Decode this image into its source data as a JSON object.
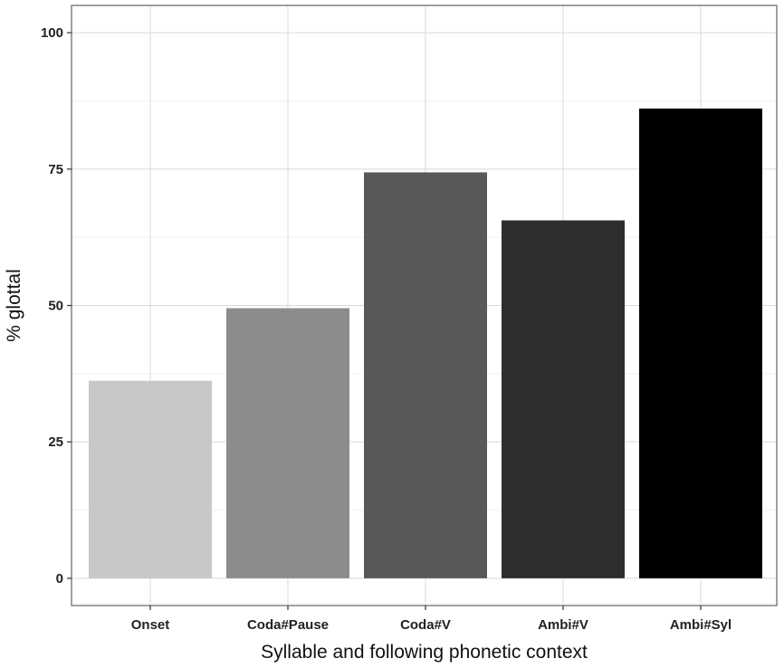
{
  "chart_data": {
    "type": "bar",
    "categories": [
      "Onset",
      "Coda#Pause",
      "Coda#V",
      "Ambi#V",
      "Ambi#Syl"
    ],
    "values": [
      36.2,
      49.5,
      74.4,
      65.6,
      86.1
    ],
    "colors": [
      "#c8c8c8",
      "#8c8c8c",
      "#585858",
      "#2e2e2e",
      "#000000"
    ],
    "xlabel": "Syllable and following phonetic context",
    "ylabel": "% glottal",
    "ylim": [
      -5,
      105
    ],
    "yticks": [
      0,
      25,
      50,
      75,
      100
    ],
    "grid": true,
    "panel_border_color": "#6e6e6e",
    "grid_color": "#d9d9d9",
    "minor_grid_color": "#ededed"
  }
}
